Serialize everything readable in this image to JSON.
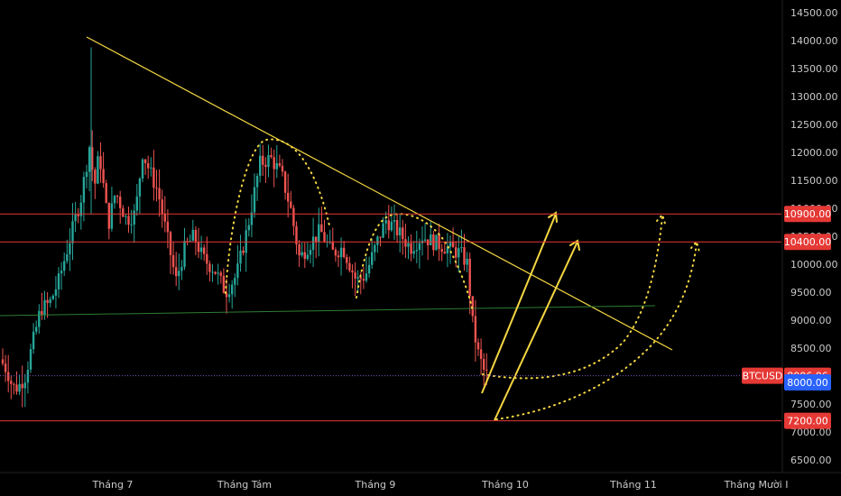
{
  "chart_data": {
    "type": "candlestick",
    "symbol": "BTCUSD",
    "y_axis": {
      "range": [
        6300,
        14800
      ],
      "ticks": [
        6500,
        7000,
        7500,
        8000,
        8500,
        9000,
        9500,
        10000,
        10500,
        11000,
        11500,
        12000,
        12500,
        13000,
        13500,
        14000,
        14500
      ],
      "tick_labels": [
        "6500.00",
        "7000.00",
        "7500.00",
        "8000.00",
        "8500.00",
        "9000.00",
        "9500.00",
        "10000.00",
        "10500.00",
        "11000.00",
        "11500.00",
        "12000.00",
        "12500.00",
        "13000.00",
        "13500.00",
        "14000.00",
        "14500.00"
      ]
    },
    "x_axis": {
      "labels": [
        "Tháng 7",
        "Tháng Tám",
        "Tháng 9",
        "Tháng 10",
        "Tháng 11",
        "Tháng Mười I"
      ]
    },
    "price_labels": [
      {
        "value": 10900,
        "text": "10900.00",
        "color": "#e53935"
      },
      {
        "value": 10400,
        "text": "10400.00",
        "color": "#e53935"
      },
      {
        "value": 8006.06,
        "text": "8006.06",
        "color": "#e53935",
        "tag": "BTCUSD"
      },
      {
        "value": 8000,
        "text": "8000.00",
        "color": "#2962ff"
      },
      {
        "value": 7200,
        "text": "7200.00",
        "color": "#e53935"
      }
    ],
    "candles_summary": {
      "first_close": 8300,
      "high": 13880,
      "last_close": 8006.06,
      "up_color": "#26a69a",
      "down_color": "#ef5350"
    },
    "grid": false,
    "legend": "none"
  }
}
